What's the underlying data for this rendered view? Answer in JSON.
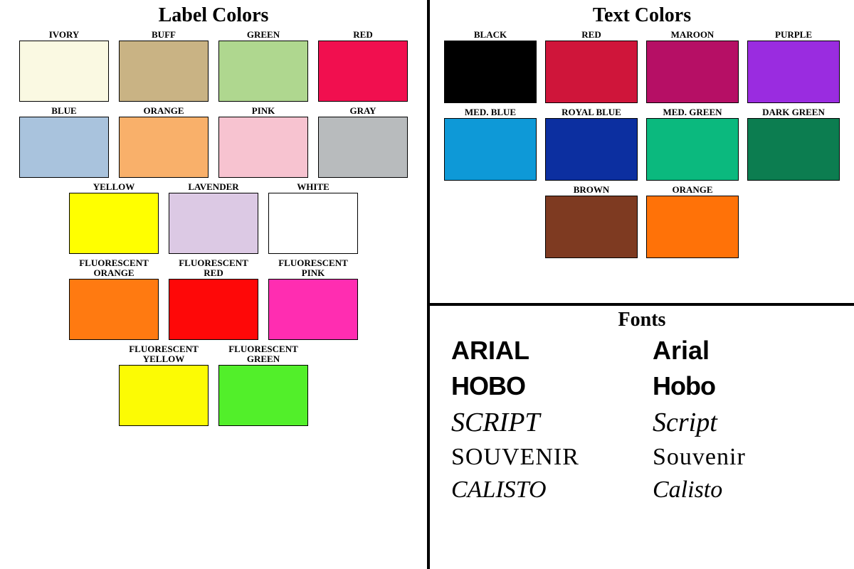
{
  "labelColors": {
    "title": "Label Colors",
    "rows": [
      [
        {
          "name": "IVORY",
          "hex": "#faf9e2"
        },
        {
          "name": "BUFF",
          "hex": "#c9b384"
        },
        {
          "name": "GREEN",
          "hex": "#afd78f"
        },
        {
          "name": "RED",
          "hex": "#f10f4f"
        }
      ],
      [
        {
          "name": "BLUE",
          "hex": "#a9c3dd"
        },
        {
          "name": "ORANGE",
          "hex": "#f9b06a"
        },
        {
          "name": "PINK",
          "hex": "#f7c3d0"
        },
        {
          "name": "GRAY",
          "hex": "#b8bbbd"
        }
      ],
      [
        {
          "name": "YELLOW",
          "hex": "#ffff00"
        },
        {
          "name": "LAVENDER",
          "hex": "#dcc9e4"
        },
        {
          "name": "WHITE",
          "hex": "#ffffff"
        }
      ],
      [
        {
          "name": "FLUORESCENT\nORANGE",
          "hex": "#ff7a11"
        },
        {
          "name": "FLUORESCENT\nRED",
          "hex": "#fe0808"
        },
        {
          "name": "FLUORESCENT\nPINK",
          "hex": "#ff2db1"
        }
      ],
      [
        {
          "name": "FLUORESCENT\nYELLOW",
          "hex": "#fcfb04"
        },
        {
          "name": "FLUORESCENT\nGREEN",
          "hex": "#52ef2a"
        }
      ]
    ]
  },
  "textColors": {
    "title": "Text Colors",
    "rows": [
      [
        {
          "name": "BLACK",
          "hex": "#000000"
        },
        {
          "name": "RED",
          "hex": "#cf153a"
        },
        {
          "name": "MAROON",
          "hex": "#b60f65"
        },
        {
          "name": "PURPLE",
          "hex": "#9a2ce0"
        }
      ],
      [
        {
          "name": "MED. BLUE",
          "hex": "#0e99d7"
        },
        {
          "name": "ROYAL BLUE",
          "hex": "#0c2fa0"
        },
        {
          "name": "MED. GREEN",
          "hex": "#0bb97e"
        },
        {
          "name": "DARK GREEN",
          "hex": "#0c7d50"
        }
      ],
      [
        {
          "name": "BROWN",
          "hex": "#7e3a21"
        },
        {
          "name": "ORANGE",
          "hex": "#ff7208"
        }
      ]
    ]
  },
  "fonts": {
    "title": "Fonts",
    "samples": [
      {
        "upper": "ARIAL",
        "mixed": "Arial",
        "class": "f-arial"
      },
      {
        "upper": "HOBO",
        "mixed": "Hobo",
        "class": "f-hobo"
      },
      {
        "upper": "SCRIPT",
        "mixed": "Script",
        "class": "f-script"
      },
      {
        "upper": "SOUVENIR",
        "mixed": "Souvenir",
        "class": "f-souv"
      },
      {
        "upper": "CALISTO",
        "mixed": "Calisto",
        "class": "f-calisto"
      }
    ]
  }
}
